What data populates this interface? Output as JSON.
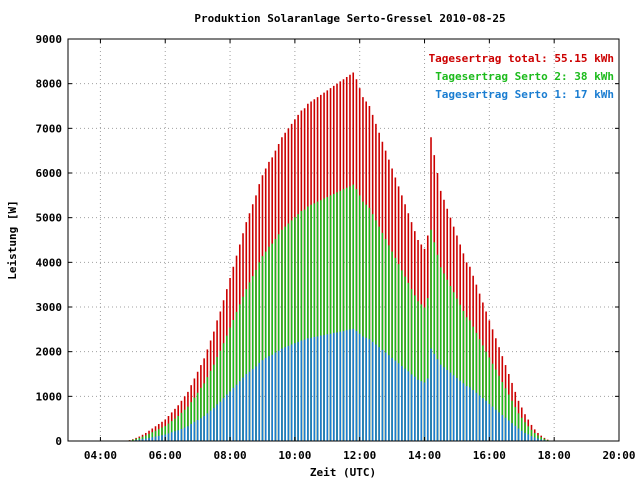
{
  "chart_data": {
    "type": "bar",
    "title": "Produktion Solaranlage Serto-Gressel 2010-08-25",
    "xlabel": "Zeit (UTC)",
    "ylabel": "Leistung [W]",
    "xlim": [
      3.0,
      20.0
    ],
    "ylim": [
      0,
      9000
    ],
    "x_tick_values": [
      4,
      6,
      8,
      10,
      12,
      14,
      16,
      18,
      20
    ],
    "x_tick_labels": [
      "04:00",
      "06:00",
      "08:00",
      "10:00",
      "12:00",
      "14:00",
      "16:00",
      "18:00",
      "20:00"
    ],
    "y_tick_values": [
      0,
      1000,
      2000,
      3000,
      4000,
      5000,
      6000,
      7000,
      8000,
      9000
    ],
    "y_tick_labels": [
      "0",
      "1000",
      "2000",
      "3000",
      "4000",
      "5000",
      "6000",
      "7000",
      "8000",
      "9000"
    ],
    "grid": true,
    "legend_position": "top-right",
    "legend": [
      {
        "label": "Tagesertrag total: 55.15 kWh",
        "color": "#cc0000"
      },
      {
        "label": "Tagesertrag Serto 2: 38 kWh",
        "color": "#1cbb1c"
      },
      {
        "label": "Tagesertrag Serto 1: 17 kWh",
        "color": "#1a7dd1"
      }
    ],
    "x": [
      4.9,
      5.0,
      5.1,
      5.2,
      5.3,
      5.4,
      5.5,
      5.6,
      5.7,
      5.8,
      5.9,
      6.0,
      6.1,
      6.2,
      6.3,
      6.4,
      6.5,
      6.6,
      6.7,
      6.8,
      6.9,
      7.0,
      7.1,
      7.2,
      7.3,
      7.4,
      7.5,
      7.6,
      7.7,
      7.8,
      7.9,
      8.0,
      8.1,
      8.2,
      8.3,
      8.4,
      8.5,
      8.6,
      8.7,
      8.8,
      8.9,
      9.0,
      9.1,
      9.2,
      9.3,
      9.4,
      9.5,
      9.6,
      9.7,
      9.8,
      9.9,
      10.0,
      10.1,
      10.2,
      10.3,
      10.4,
      10.5,
      10.6,
      10.7,
      10.8,
      10.9,
      11.0,
      11.1,
      11.2,
      11.3,
      11.4,
      11.5,
      11.6,
      11.7,
      11.8,
      11.9,
      12.0,
      12.1,
      12.2,
      12.3,
      12.4,
      12.5,
      12.6,
      12.7,
      12.8,
      12.9,
      13.0,
      13.1,
      13.2,
      13.3,
      13.4,
      13.5,
      13.6,
      13.7,
      13.8,
      13.9,
      14.0,
      14.1,
      14.2,
      14.3,
      14.4,
      14.5,
      14.6,
      14.7,
      14.8,
      14.9,
      15.0,
      15.1,
      15.2,
      15.3,
      15.4,
      15.5,
      15.6,
      15.7,
      15.8,
      15.9,
      16.0,
      16.1,
      16.2,
      16.3,
      16.4,
      16.5,
      16.6,
      16.7,
      16.8,
      16.9,
      17.0,
      17.1,
      17.2,
      17.3,
      17.4,
      17.5,
      17.6,
      17.7,
      17.8,
      17.9,
      18.0
    ],
    "series": [
      {
        "name": "Tagesertrag total: 55.15 kWh",
        "values": [
          20,
          40,
          70,
          100,
          140,
          180,
          230,
          280,
          330,
          380,
          430,
          480,
          560,
          640,
          720,
          800,
          900,
          1000,
          1100,
          1250,
          1400,
          1550,
          1700,
          1850,
          2050,
          2250,
          2450,
          2700,
          2900,
          3150,
          3400,
          3650,
          3900,
          4150,
          4400,
          4650,
          4900,
          5100,
          5300,
          5500,
          5750,
          5950,
          6100,
          6250,
          6350,
          6500,
          6650,
          6800,
          6900,
          7000,
          7100,
          7200,
          7300,
          7400,
          7450,
          7550,
          7600,
          7650,
          7700,
          7750,
          7800,
          7850,
          7900,
          7950,
          8000,
          8050,
          8100,
          8150,
          8200,
          8250,
          8100,
          7900,
          7700,
          7600,
          7500,
          7300,
          7100,
          6900,
          6700,
          6500,
          6300,
          6100,
          5900,
          5700,
          5500,
          5300,
          5100,
          4900,
          4700,
          4500,
          4400,
          4300,
          4600,
          6800,
          6400,
          6000,
          5600,
          5400,
          5200,
          5000,
          4800,
          4600,
          4400,
          4200,
          4000,
          3900,
          3700,
          3500,
          3300,
          3100,
          2900,
          2700,
          2500,
          2300,
          2100,
          1900,
          1700,
          1500,
          1300,
          1100,
          900,
          750,
          600,
          480,
          360,
          260,
          180,
          120,
          70,
          30,
          10,
          5
        ],
        "color": "#cc0000"
      },
      {
        "name": "Tagesertrag Serto 2: 38 kWh",
        "values": [
          15,
          30,
          50,
          70,
          95,
          125,
          160,
          195,
          230,
          265,
          300,
          335,
          390,
          445,
          500,
          560,
          630,
          700,
          770,
          870,
          970,
          1080,
          1190,
          1290,
          1430,
          1570,
          1710,
          1880,
          2020,
          2190,
          2360,
          2540,
          2710,
          2890,
          3060,
          3230,
          3400,
          3550,
          3690,
          3830,
          4000,
          4140,
          4240,
          4350,
          4420,
          4520,
          4630,
          4730,
          4800,
          4870,
          4940,
          5010,
          5080,
          5150,
          5180,
          5250,
          5290,
          5320,
          5360,
          5390,
          5430,
          5460,
          5500,
          5530,
          5570,
          5600,
          5640,
          5670,
          5700,
          5740,
          5640,
          5500,
          5360,
          5290,
          5220,
          5080,
          4940,
          4800,
          4660,
          4520,
          4380,
          4240,
          4100,
          3960,
          3820,
          3680,
          3540,
          3400,
          3260,
          3130,
          3060,
          2990,
          3200,
          4730,
          4450,
          4170,
          3890,
          3750,
          3610,
          3470,
          3330,
          3190,
          3050,
          2910,
          2770,
          2700,
          2560,
          2420,
          2280,
          2140,
          2000,
          1870,
          1730,
          1600,
          1460,
          1320,
          1180,
          1040,
          900,
          760,
          620,
          520,
          420,
          330,
          250,
          180,
          125,
          85,
          50,
          20,
          7,
          3
        ],
        "color": "#1cbb1c"
      },
      {
        "name": "Tagesertrag Serto 1: 17 kWh",
        "values": [
          5,
          10,
          20,
          30,
          45,
          55,
          70,
          85,
          100,
          115,
          130,
          145,
          170,
          195,
          220,
          240,
          270,
          300,
          330,
          380,
          430,
          470,
          510,
          560,
          620,
          680,
          740,
          820,
          880,
          960,
          1040,
          1110,
          1190,
          1260,
          1340,
          1420,
          1500,
          1550,
          1610,
          1670,
          1750,
          1810,
          1860,
          1900,
          1930,
          1980,
          2020,
          2070,
          2100,
          2130,
          2160,
          2190,
          2220,
          2250,
          2270,
          2300,
          2310,
          2330,
          2340,
          2360,
          2370,
          2390,
          2400,
          2420,
          2430,
          2450,
          2460,
          2480,
          2500,
          2510,
          2460,
          2400,
          2340,
          2310,
          2280,
          2220,
          2160,
          2100,
          2040,
          1980,
          1920,
          1860,
          1800,
          1740,
          1680,
          1620,
          1560,
          1490,
          1440,
          1370,
          1340,
          1310,
          1400,
          2070,
          1950,
          1830,
          1710,
          1650,
          1590,
          1530,
          1470,
          1410,
          1350,
          1290,
          1230,
          1200,
          1140,
          1080,
          1020,
          960,
          900,
          830,
          770,
          700,
          640,
          580,
          520,
          460,
          400,
          340,
          280,
          230,
          180,
          150,
          110,
          80,
          55,
          35,
          20,
          10,
          3,
          2
        ],
        "color": "#1a7dd1"
      }
    ]
  }
}
